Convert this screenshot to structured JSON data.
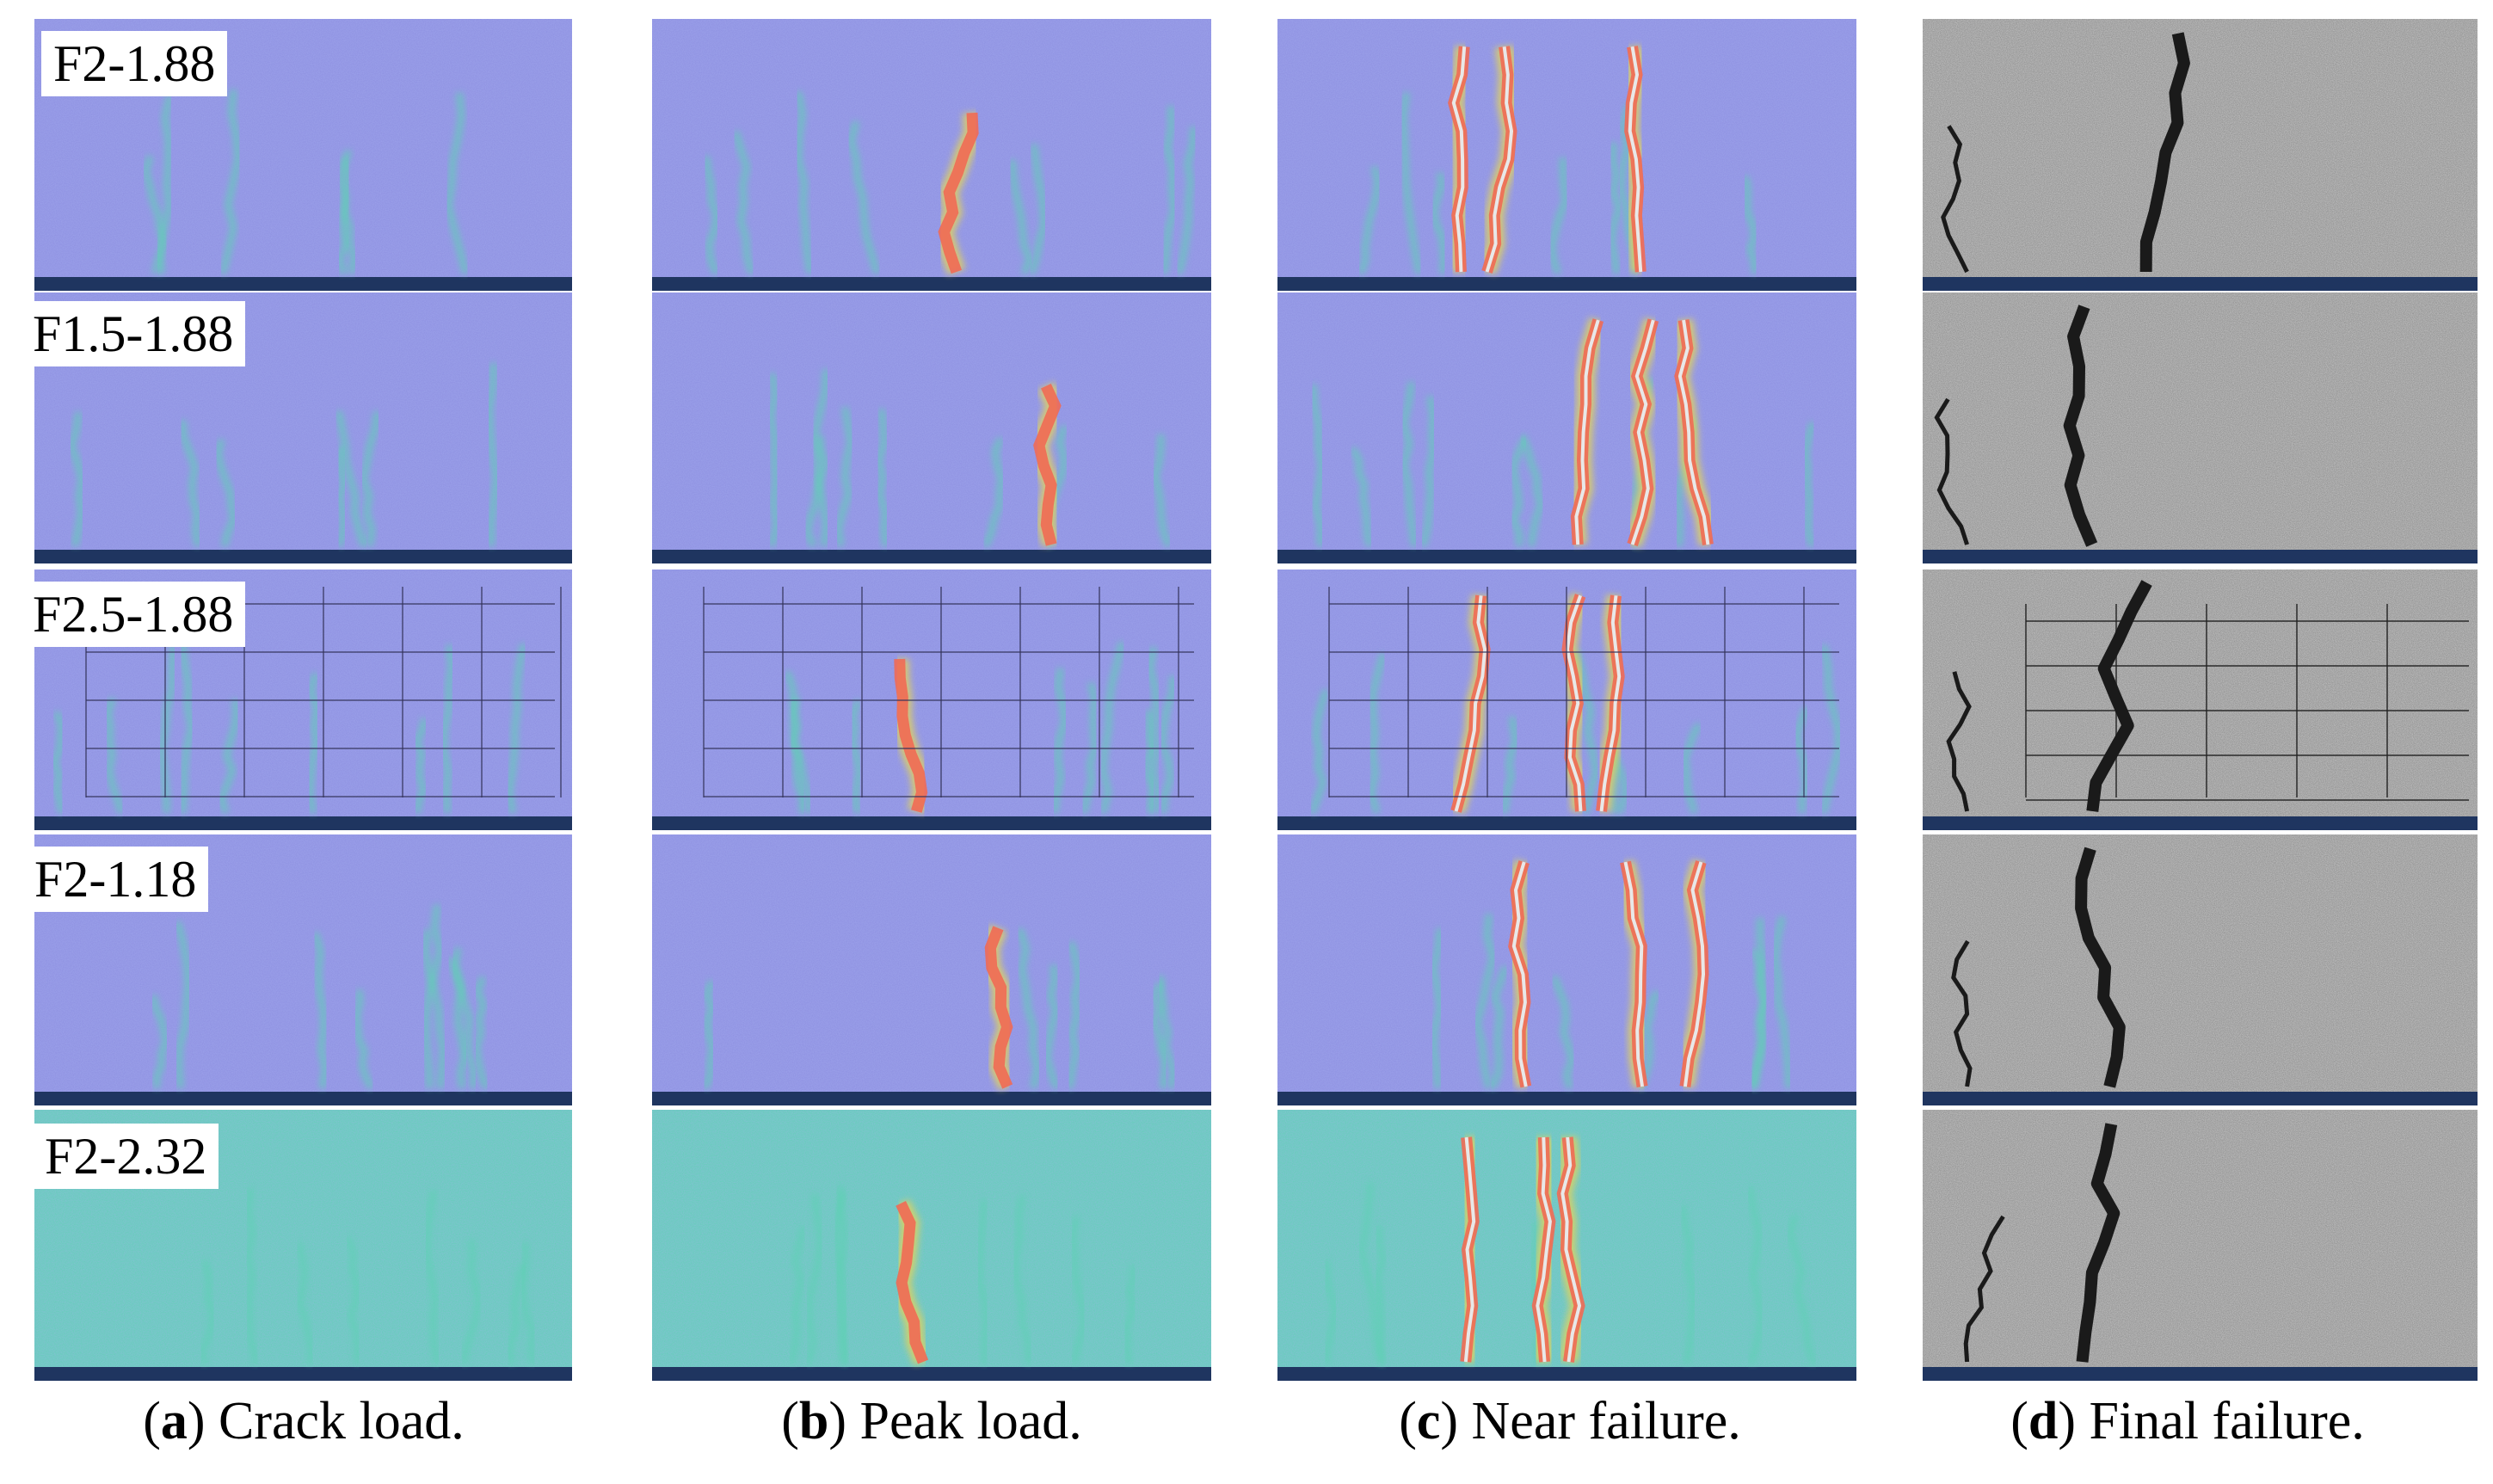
{
  "figure": {
    "specimens": [
      "F2-1.88",
      "F1.5-1.88",
      "F2.5-1.88",
      "F2-1.18",
      "F2-2.32"
    ],
    "columns": [
      {
        "letter": "a",
        "title": "Crack load.",
        "image_type": "dic-strain-contour"
      },
      {
        "letter": "b",
        "title": "Peak load.",
        "image_type": "dic-strain-contour"
      },
      {
        "letter": "c",
        "title": "Near failure.",
        "image_type": "dic-strain-contour"
      },
      {
        "letter": "d",
        "title": "Final failure.",
        "image_type": "photograph"
      }
    ],
    "colors": {
      "strain_low": "#8d8fe0",
      "strain_mid": "#5fd0b4",
      "strain_warm": "#e3d35a",
      "strain_high": "#ef6a55",
      "crack": "#1a1a1a",
      "concrete": "#c9c9c9",
      "support": "#1f3560"
    }
  }
}
